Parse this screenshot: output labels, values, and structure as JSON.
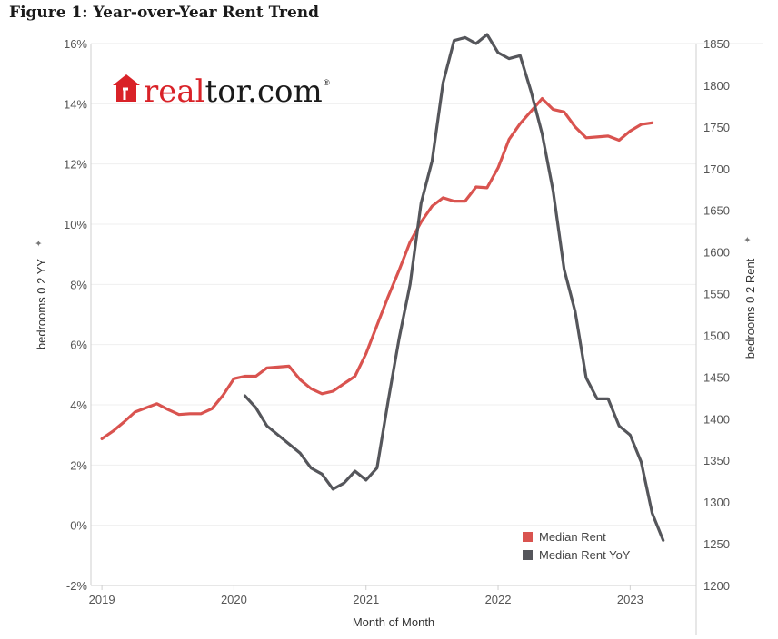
{
  "figure_title": "Figure 1: Year-over-Year Rent Trend",
  "logo": {
    "text_red": "real",
    "text_dark": "tor.com",
    "registered": "®",
    "red": "#d92228",
    "dark": "#1a1a1a"
  },
  "chart_data": {
    "type": "line",
    "xlabel": "Month of Month",
    "ylabel_left": "bedrooms 0 2 YY",
    "ylabel_right": "bedrooms 0 2 Rent",
    "x_ticks": [
      "2019",
      "2020",
      "2021",
      "2022",
      "2023"
    ],
    "x_range": [
      "2018-12",
      "2023-07"
    ],
    "y_left_ticks": [
      "-2%",
      "0%",
      "2%",
      "4%",
      "6%",
      "8%",
      "10%",
      "12%",
      "14%",
      "16%"
    ],
    "y_left_range": [
      -2,
      16
    ],
    "y_right_ticks": [
      "1200",
      "1250",
      "1300",
      "1350",
      "1400",
      "1450",
      "1500",
      "1550",
      "1600",
      "1650",
      "1700",
      "1750",
      "1800",
      "1850"
    ],
    "y_right_range": [
      1200,
      1850
    ],
    "gridlines": true,
    "legend": {
      "placement": "bottom-right"
    },
    "series": [
      {
        "name": "Median Rent",
        "axis": "right",
        "color": "#d9534f",
        "start": "2019-01",
        "values": [
          1376,
          1385,
          1396,
          1408,
          1413,
          1418,
          1411,
          1405,
          1406,
          1406,
          1412,
          1428,
          1448,
          1451,
          1451,
          1461,
          1462,
          1463,
          1447,
          1436,
          1430,
          1433,
          1442,
          1451,
          1478,
          1512,
          1546,
          1578,
          1612,
          1636,
          1655,
          1665,
          1661,
          1661,
          1678,
          1677,
          1701,
          1735,
          1754,
          1769,
          1784,
          1771,
          1768,
          1750,
          1737,
          1738,
          1739,
          1734,
          1745,
          1753,
          1755
        ]
      },
      {
        "name": "Median Rent YoY",
        "axis": "left",
        "color": "#55565b",
        "start": "2020-02",
        "values": [
          4.3,
          3.9,
          3.3,
          3.0,
          2.7,
          2.4,
          1.9,
          1.7,
          1.2,
          1.4,
          1.8,
          1.5,
          1.9,
          4.1,
          6.2,
          8.0,
          10.7,
          12.1,
          14.7,
          16.1,
          16.2,
          16.0,
          16.3,
          15.7,
          15.5,
          15.6,
          14.4,
          13.0,
          11.1,
          8.5,
          7.1,
          4.9,
          4.2,
          4.2,
          3.3,
          3.0,
          2.1,
          0.4,
          -0.5
        ]
      }
    ]
  }
}
